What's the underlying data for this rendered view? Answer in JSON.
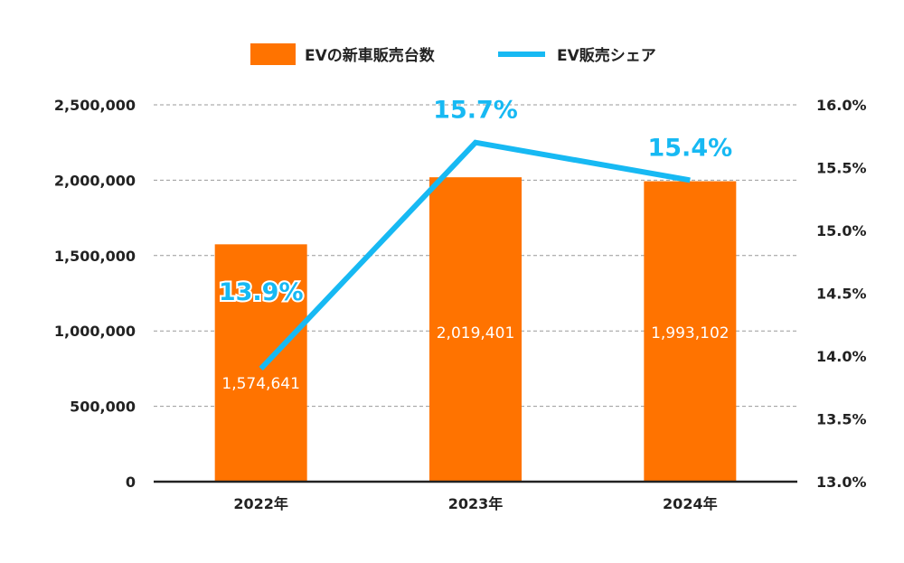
{
  "chart_data": {
    "type": "bar+line",
    "categories": [
      "2022年",
      "2023年",
      "2024年"
    ],
    "series": [
      {
        "name": "EVの新車販売台数",
        "type": "bar",
        "axis": "left",
        "color": "#ff7300",
        "values": [
          1574641,
          2019401,
          1993102
        ],
        "labels": [
          "1,574,641",
          "2,019,401",
          "1,993,102"
        ]
      },
      {
        "name": "EV販売シェア",
        "type": "line",
        "axis": "right",
        "color": "#17b9f3",
        "values": [
          13.9,
          15.7,
          15.4
        ],
        "labels": [
          "13.9%",
          "15.7%",
          "15.4%"
        ]
      }
    ],
    "left_axis": {
      "ylim": [
        0,
        2500000
      ],
      "ticks": [
        "0",
        "500,000",
        "1,000,000",
        "1,500,000",
        "2,000,000",
        "2,500,000"
      ]
    },
    "right_axis": {
      "ylim": [
        13.0,
        16.0
      ],
      "ticks": [
        "13.0%",
        "13.5%",
        "14.0%",
        "14.5%",
        "15.0%",
        "15.5%",
        "16.0%"
      ]
    },
    "grid": true,
    "legend": "top"
  }
}
